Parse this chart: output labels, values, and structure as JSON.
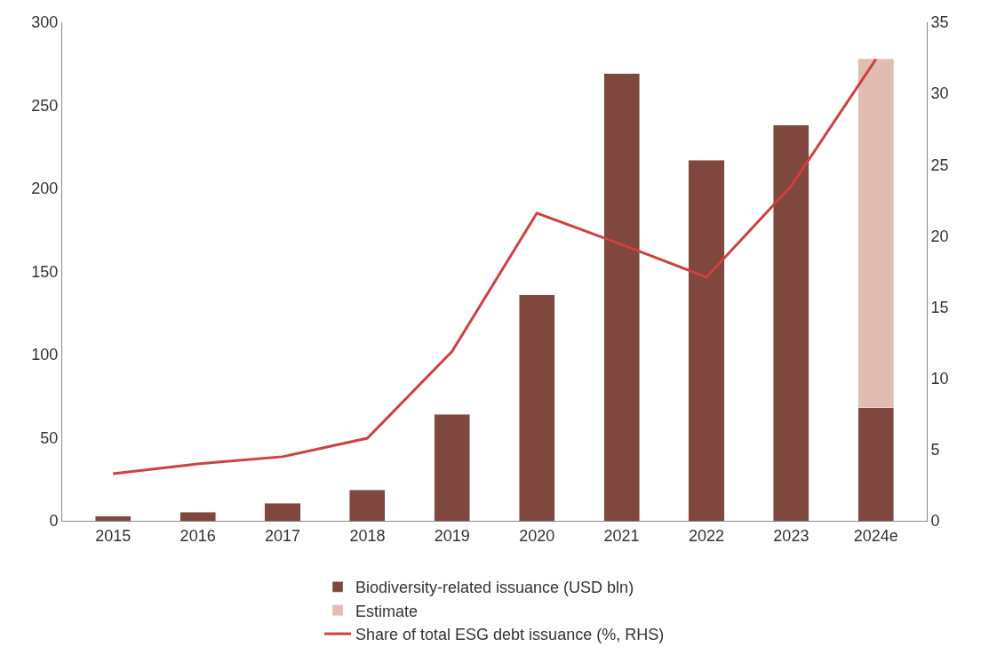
{
  "chart_data": {
    "type": "bar",
    "stacked": true,
    "categories": [
      "2015",
      "2016",
      "2017",
      "2018",
      "2019",
      "2020",
      "2021",
      "2022",
      "2023",
      "2024e"
    ],
    "series": [
      {
        "name": "Biodiversity-related issuance (USD bln)",
        "color": "#7f473d",
        "values": [
          2.7,
          5.3,
          10.6,
          18.6,
          64,
          136,
          269,
          217,
          238,
          68
        ]
      },
      {
        "name": "Estimate",
        "color": "#e2bcb0",
        "values": [
          null,
          null,
          null,
          null,
          null,
          null,
          null,
          null,
          null,
          210
        ]
      },
      {
        "name": "Share of total ESG debt issuance (%, RHS)",
        "type": "line",
        "axis": "y2",
        "color": "#cf4140",
        "marker": "none",
        "line_style": "solid",
        "values": [
          3.3,
          4.0,
          4.5,
          5.8,
          11.9,
          21.6,
          19.4,
          17.1,
          23.5,
          32.4
        ]
      }
    ],
    "ylim": [
      0,
      300
    ],
    "yticks": [
      0,
      50,
      100,
      150,
      200,
      250,
      300
    ],
    "y2lim": [
      0,
      35
    ],
    "y2ticks": [
      0,
      5,
      10,
      15,
      20,
      25,
      30,
      35
    ],
    "legend": "bottom"
  }
}
